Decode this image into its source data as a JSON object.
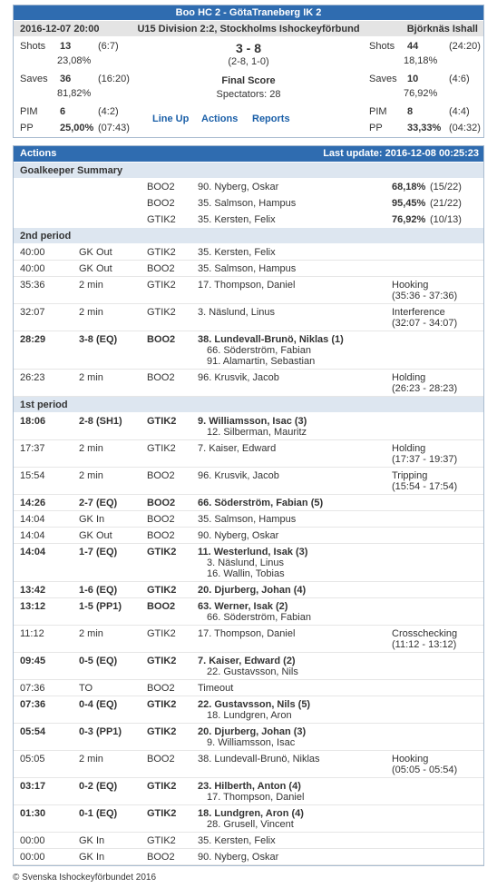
{
  "header": {
    "title": "Boo HC 2 - GötaTraneberg IK 2",
    "date": "2016-12-07 20:00",
    "league": "U15 Division 2:2, Stockholms Ishockeyförbund",
    "venue": "Björknäs Ishall",
    "home": [
      {
        "label": "Shots",
        "value": "13",
        "extra": "(6:7)",
        "pct": "23,08%"
      },
      {
        "label": "Saves",
        "value": "36",
        "extra": "(16:20)",
        "pct": "81,82%"
      },
      {
        "label": "PIM",
        "value": "6",
        "extra": "(4:2)"
      },
      {
        "label": "PP",
        "value": "25,00%",
        "extra": "(07:43)"
      }
    ],
    "away": [
      {
        "label": "Shots",
        "value": "44",
        "extra": "(24:20)",
        "pct": "18,18%"
      },
      {
        "label": "Saves",
        "value": "10",
        "extra": "(4:6)",
        "pct": "76,92%"
      },
      {
        "label": "PIM",
        "value": "8",
        "extra": "(4:4)"
      },
      {
        "label": "PP",
        "value": "33,33%",
        "extra": "(04:32)"
      }
    ],
    "score": "3 - 8",
    "periods": "(2-8, 1-0)",
    "status": "Final Score",
    "spectators": "Spectators: 28",
    "links": [
      "Line Up",
      "Actions",
      "Reports"
    ]
  },
  "actions": {
    "title": "Actions",
    "updated": "Last update: 2016-12-08 00:25:23",
    "goalkeepers": {
      "title": "Goalkeeper Summary",
      "rows": [
        [
          "BOO2",
          "90. Nyberg, Oskar",
          "68,18%",
          "(15/22)"
        ],
        [
          "BOO2",
          "35. Salmson, Hampus",
          "95,45%",
          "(21/22)"
        ],
        [
          "GTIK2",
          "35. Kersten, Felix",
          "76,92%",
          "(10/13)"
        ]
      ]
    },
    "periods": [
      {
        "title": "2nd period",
        "events": [
          {
            "time": "40:00",
            "event": "GK Out",
            "team": "GTIK2",
            "player": "35. Kersten, Felix"
          },
          {
            "time": "40:00",
            "event": "GK Out",
            "team": "BOO2",
            "player": "35. Salmson, Hampus"
          },
          {
            "time": "35:36",
            "event": "2 min",
            "team": "GTIK2",
            "player": "17. Thompson, Daniel",
            "note": [
              "Hooking",
              "(35:36 - 37:36)"
            ]
          },
          {
            "time": "32:07",
            "event": "2 min",
            "team": "GTIK2",
            "player": "3. Näslund, Linus",
            "note": [
              "Interference",
              "(32:07 - 34:07)"
            ]
          },
          {
            "time": "28:29",
            "event": "3-8 (EQ)",
            "team": "BOO2",
            "player": "38. Lundevall-Brunö, Niklas (1)",
            "assists": [
              "66. Söderström, Fabian",
              "91. Alamartin, Sebastian"
            ]
          },
          {
            "time": "26:23",
            "event": "2 min",
            "team": "BOO2",
            "player": "96. Krusvik, Jacob",
            "note": [
              "Holding",
              "(26:23 - 28:23)"
            ]
          }
        ]
      },
      {
        "title": "1st period",
        "events": [
          {
            "time": "18:06",
            "event": "2-8 (SH1)",
            "team": "GTIK2",
            "player": "9. Williamsson, Isac (3)",
            "assists": [
              "12. Silberman, Mauritz"
            ]
          },
          {
            "time": "17:37",
            "event": "2 min",
            "team": "GTIK2",
            "player": "7. Kaiser, Edward",
            "note": [
              "Holding",
              "(17:37 - 19:37)"
            ]
          },
          {
            "time": "15:54",
            "event": "2 min",
            "team": "BOO2",
            "player": "96. Krusvik, Jacob",
            "note": [
              "Tripping",
              "(15:54 - 17:54)"
            ]
          },
          {
            "time": "14:26",
            "event": "2-7 (EQ)",
            "team": "BOO2",
            "player": "66. Söderström, Fabian (5)"
          },
          {
            "time": "14:04",
            "event": "GK In",
            "team": "BOO2",
            "player": "35. Salmson, Hampus"
          },
          {
            "time": "14:04",
            "event": "GK Out",
            "team": "BOO2",
            "player": "90. Nyberg, Oskar"
          },
          {
            "time": "14:04",
            "event": "1-7 (EQ)",
            "team": "GTIK2",
            "player": "11. Westerlund, Isak (3)",
            "assists": [
              "3. Näslund, Linus",
              "16. Wallin, Tobias"
            ]
          },
          {
            "time": "13:42",
            "event": "1-6 (EQ)",
            "team": "GTIK2",
            "player": "20. Djurberg, Johan (4)"
          },
          {
            "time": "13:12",
            "event": "1-5 (PP1)",
            "team": "BOO2",
            "player": "63. Werner, Isak (2)",
            "assists": [
              "66. Söderström, Fabian"
            ]
          },
          {
            "time": "11:12",
            "event": "2 min",
            "team": "GTIK2",
            "player": "17. Thompson, Daniel",
            "note": [
              "Crosschecking",
              "(11:12 - 13:12)"
            ]
          },
          {
            "time": "09:45",
            "event": "0-5 (EQ)",
            "team": "GTIK2",
            "player": "7. Kaiser, Edward (2)",
            "assists": [
              "22. Gustavsson, Nils"
            ]
          },
          {
            "time": "07:36",
            "event": "TO",
            "team": "BOO2",
            "player": "Timeout"
          },
          {
            "time": "07:36",
            "event": "0-4 (EQ)",
            "team": "GTIK2",
            "player": "22. Gustavsson, Nils (5)",
            "assists": [
              "18. Lundgren, Aron"
            ]
          },
          {
            "time": "05:54",
            "event": "0-3 (PP1)",
            "team": "GTIK2",
            "player": "20. Djurberg, Johan (3)",
            "assists": [
              "9. Williamsson, Isac"
            ]
          },
          {
            "time": "05:05",
            "event": "2 min",
            "team": "BOO2",
            "player": "38. Lundevall-Brunö, Niklas",
            "note": [
              "Hooking",
              "(05:05 - 05:54)"
            ]
          },
          {
            "time": "03:17",
            "event": "0-2 (EQ)",
            "team": "GTIK2",
            "player": "23. Hilberth, Anton (4)",
            "assists": [
              "17. Thompson, Daniel"
            ]
          },
          {
            "time": "01:30",
            "event": "0-1 (EQ)",
            "team": "GTIK2",
            "player": "18. Lundgren, Aron (4)",
            "assists": [
              "28. Grusell, Vincent"
            ]
          },
          {
            "time": "00:00",
            "event": "GK In",
            "team": "GTIK2",
            "player": "35. Kersten, Felix"
          },
          {
            "time": "00:00",
            "event": "GK In",
            "team": "BOO2",
            "player": "90. Nyberg, Oskar"
          }
        ]
      }
    ]
  },
  "footer": "© Svenska Ishockeyförbundet 2016"
}
